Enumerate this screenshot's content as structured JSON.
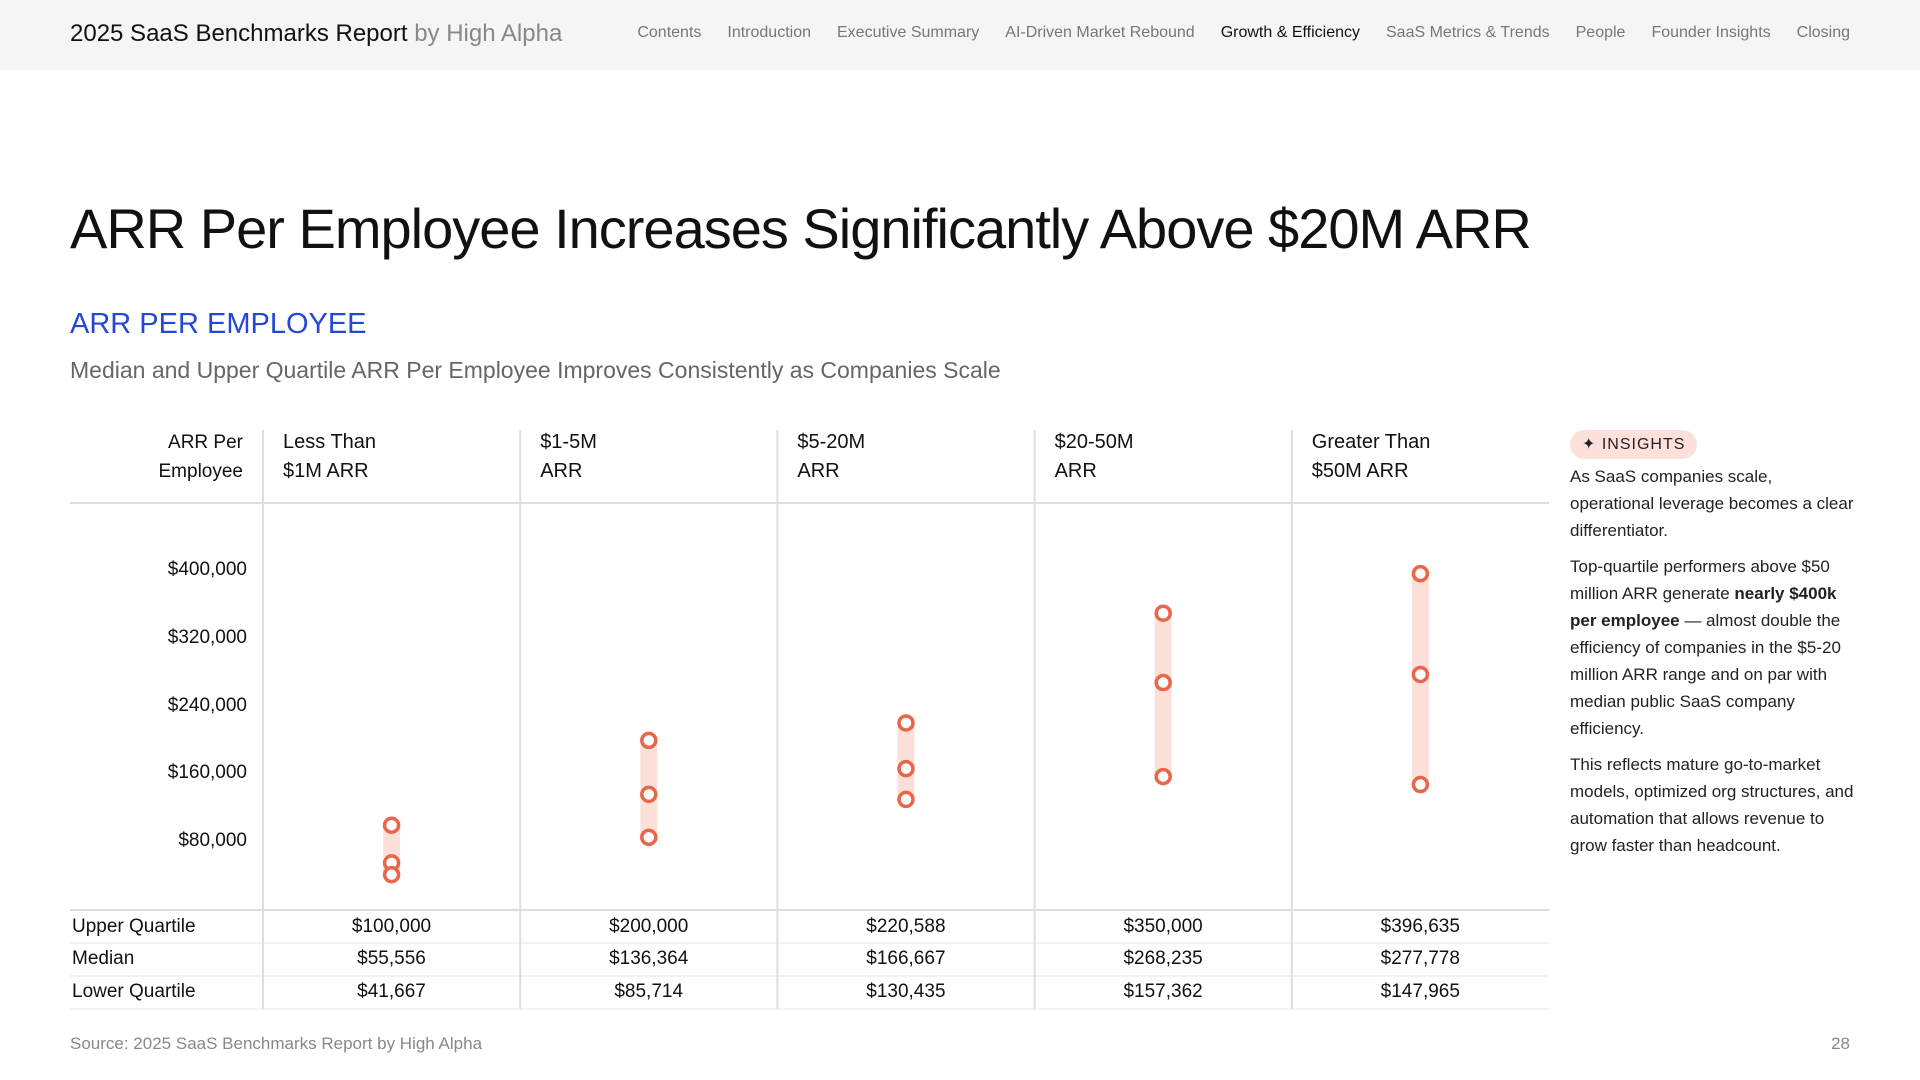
{
  "header": {
    "brand": "2025 SaaS Benchmarks Report",
    "byline": "by High Alpha",
    "nav": [
      "Contents",
      "Introduction",
      "Executive Summary",
      "AI-Driven Market Rebound",
      "Growth & Efficiency",
      "SaaS Metrics & Trends",
      "People",
      "Founder Insights",
      "Closing"
    ],
    "active_nav": 4
  },
  "title": "ARR Per Employee Increases Significantly Above $20M ARR",
  "chart_data": {
    "type": "range_dot",
    "title": "ARR PER EMPLOYEE",
    "subtitle": "Median and Upper Quartile ARR Per Employee Improves Consistently as Companies Scale",
    "y_label": "ARR Per\nEmployee",
    "categories": [
      "Less Than\n$1M ARR",
      "$1-5M\nARR",
      "$5-20M\nARR",
      "$20-50M\nARR",
      "Greater Than\n$50M ARR"
    ],
    "series": [
      {
        "name": "Upper Quartile",
        "color": "#e8674a",
        "values": [
          100000,
          200000,
          220588,
          350000,
          396635
        ],
        "value_labels": [
          "$100,000",
          "$200,000",
          "$220,588",
          "$350,000",
          "$396,635"
        ]
      },
      {
        "name": "Median",
        "color": "#e8674a",
        "values": [
          55556,
          136364,
          166667,
          268235,
          277778
        ],
        "value_labels": [
          "$55,556",
          "$136,364",
          "$166,667",
          "$268,235",
          "$277,778"
        ]
      },
      {
        "name": "Lower Quartile",
        "color": "#e8674a",
        "values": [
          41667,
          85714,
          130435,
          157362,
          147965
        ],
        "value_labels": [
          "$41,667",
          "$85,714",
          "$130,435",
          "$157,362",
          "$147,965"
        ]
      }
    ],
    "range_color": "#fbe0da",
    "ylim": [
      0,
      480000
    ],
    "yticks": [
      {
        "value": 80000,
        "label": "$80,000"
      },
      {
        "value": 160000,
        "label": "$160,000"
      },
      {
        "value": 240000,
        "label": "$240,000"
      },
      {
        "value": 320000,
        "label": "$320,000"
      },
      {
        "value": 400000,
        "label": "$400,000"
      }
    ]
  },
  "insights": {
    "badge": "INSIGHTS",
    "p1": "As SaaS companies scale, operational leverage becomes a clear differentiator.",
    "p2": {
      "before": "Top-quartile performers above $50 million ARR generate ",
      "bold": "nearly $400k per employee",
      "after": " — almost double the efficiency of companies in the $5-20 million ARR range and on par with median public SaaS company efficiency."
    },
    "p3": "This reflects mature go-to-market models, optimized org structures, and automation that allows revenue to grow faster than headcount."
  },
  "footer": {
    "source": "Source: 2025 SaaS Benchmarks Report by High Alpha",
    "page": "28"
  }
}
